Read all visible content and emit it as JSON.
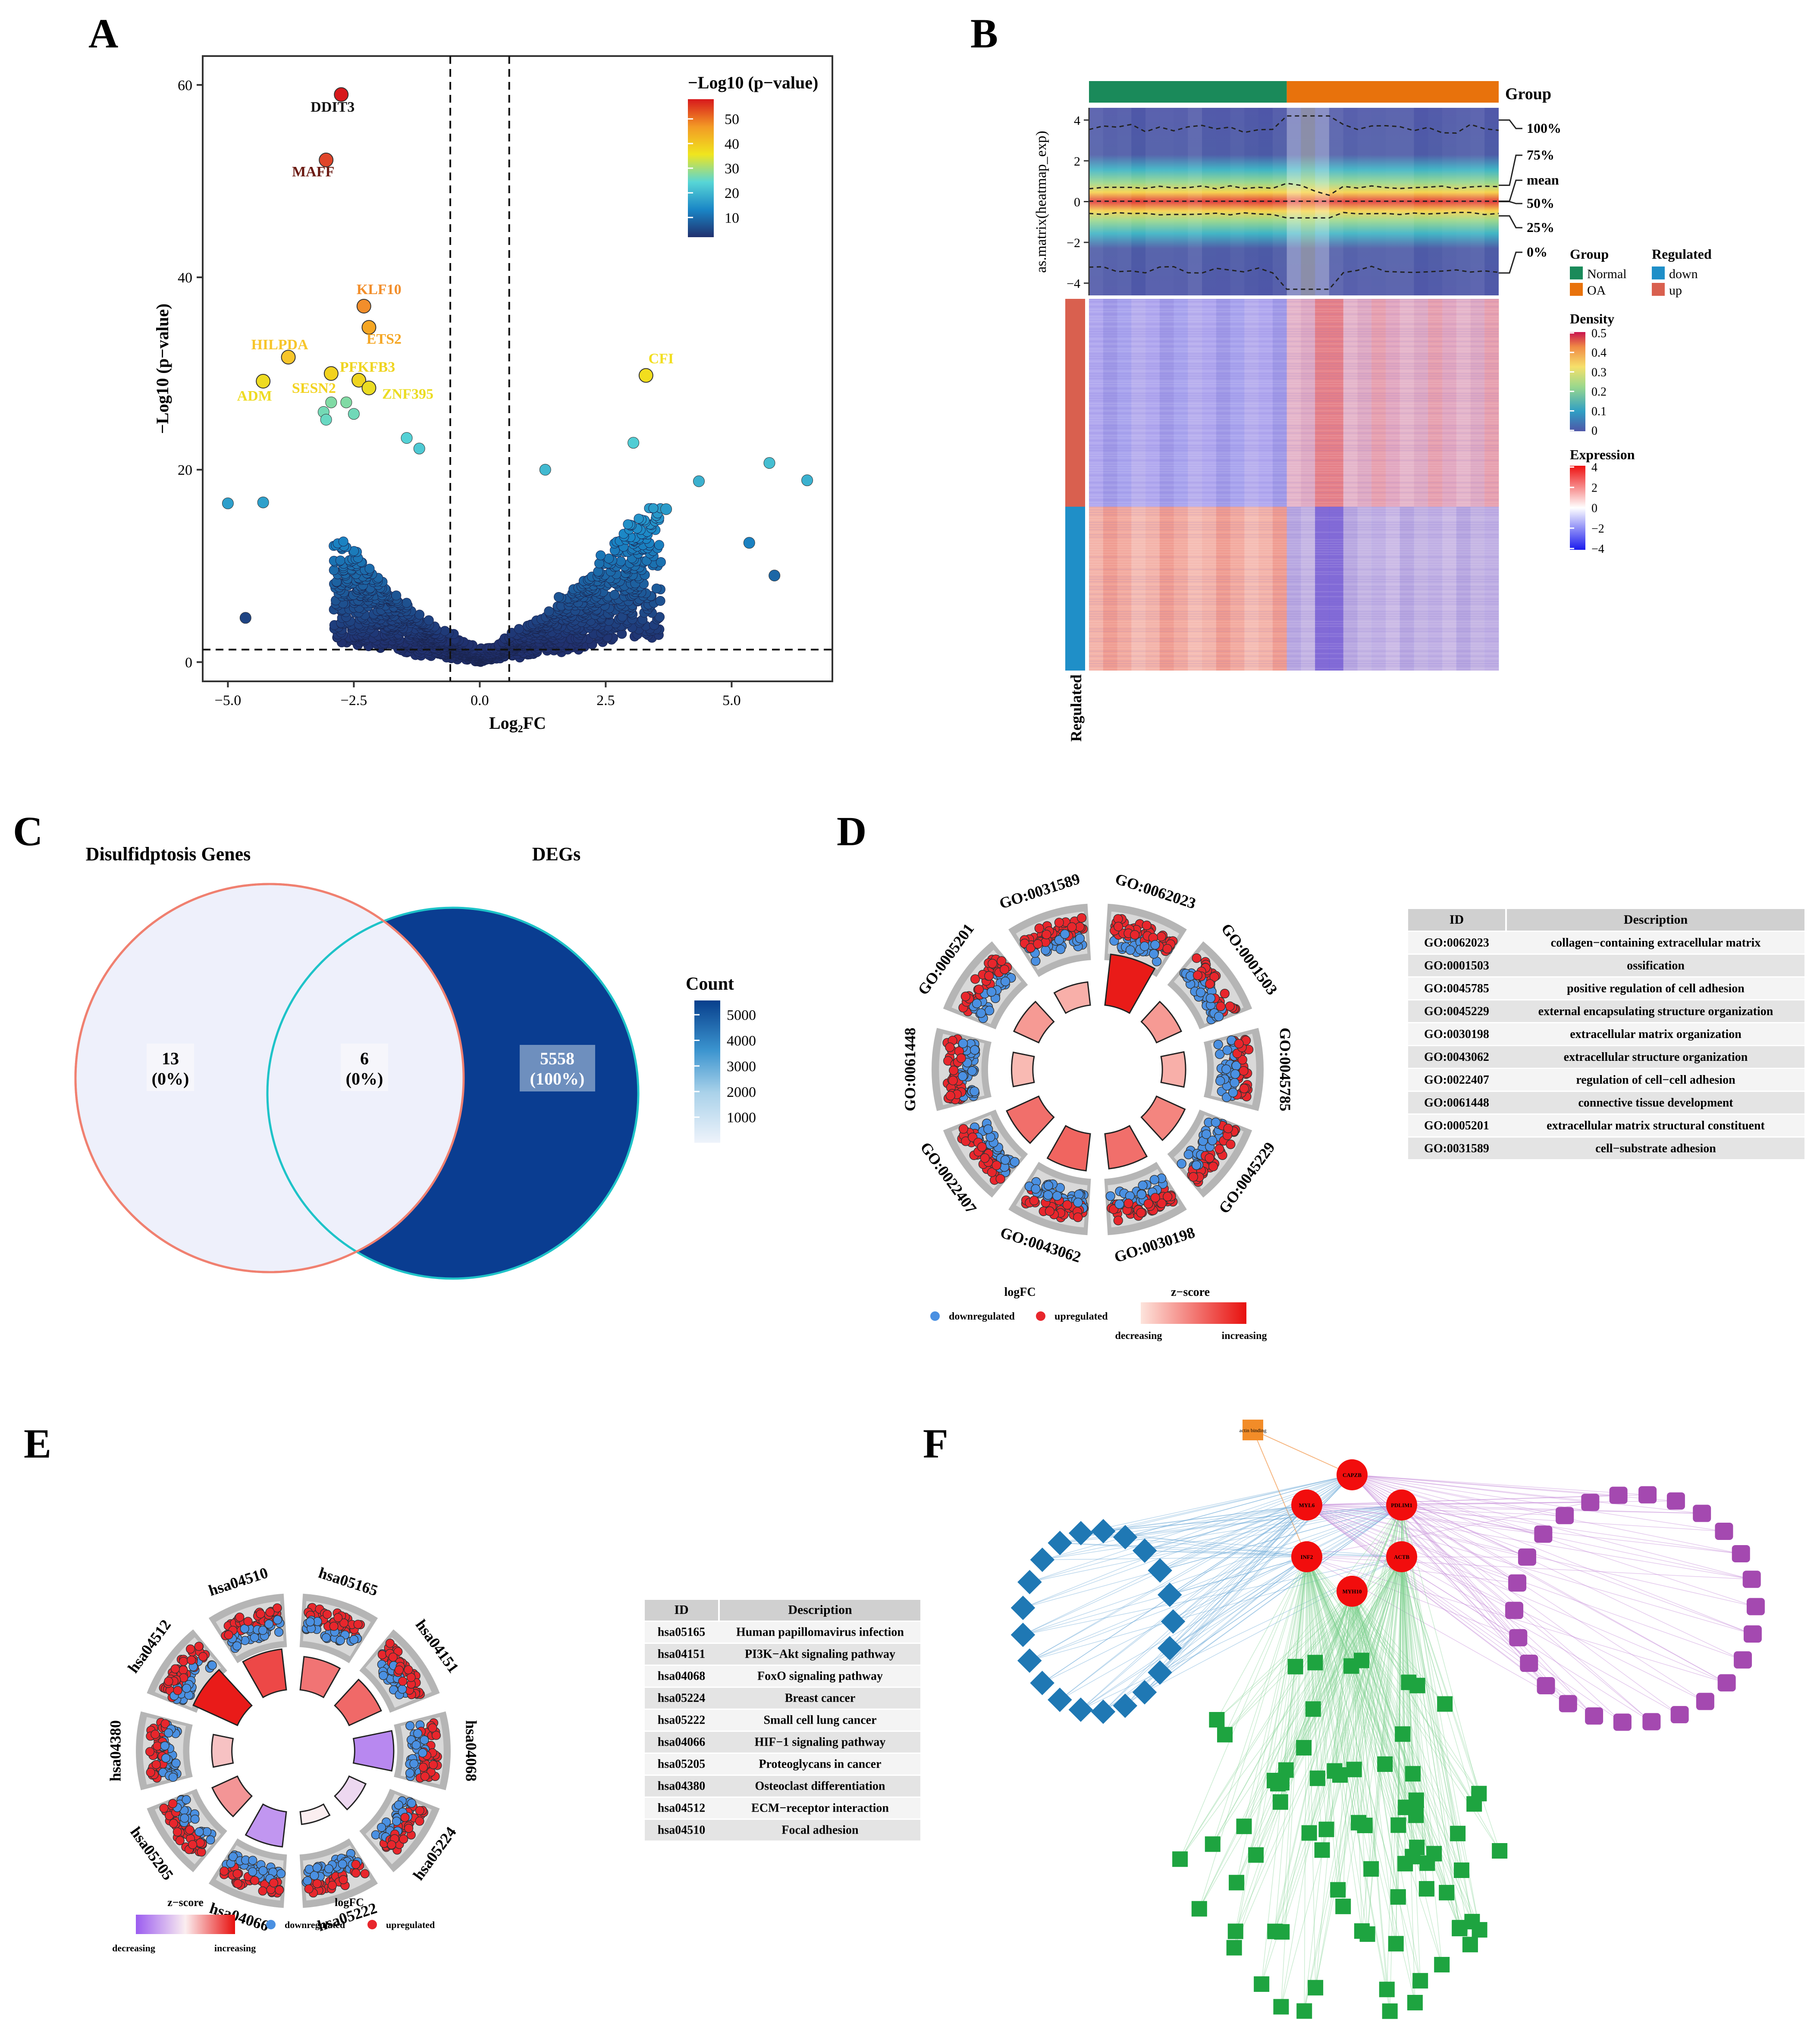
{
  "panels": {
    "A": "A",
    "B": "B",
    "C": "C",
    "D": "D",
    "E": "E",
    "F": "F"
  },
  "chart_data": [
    {
      "panel": "A",
      "type": "scatter",
      "title": "",
      "xlabel": "Log₂FC",
      "ylabel": "−Log10 (p−value)",
      "xlim": [
        -5.5,
        7
      ],
      "ylim": [
        -2,
        63
      ],
      "xticks": [
        "−5.0",
        "−2.5",
        "0.0",
        "2.5",
        "5.0"
      ],
      "xtick_values": [
        -5,
        -2.5,
        0,
        2.5,
        5
      ],
      "yticks": [
        "0",
        "20",
        "40",
        "60"
      ],
      "ytick_values": [
        0,
        20,
        40,
        60
      ],
      "thresholds": {
        "x": [
          -0.585,
          0.585
        ],
        "y": 1.3
      },
      "legend_title": "−Log10 (p−value)",
      "legend_ticks": [
        "50",
        "40",
        "30",
        "20",
        "10"
      ],
      "legend_tick_values": [
        50,
        40,
        30,
        20,
        10
      ],
      "labeled_points": [
        {
          "label": "DDIT3",
          "x": -2.75,
          "y": 59.0,
          "color": "#d7191c"
        },
        {
          "label": "MAFF",
          "x": -3.05,
          "y": 52.2,
          "color": "#e0452a"
        },
        {
          "label": "KLF10",
          "x": -2.3,
          "y": 37.0,
          "color": "#f28e2b"
        },
        {
          "label": "ETS2",
          "x": -2.2,
          "y": 34.8,
          "color": "#f5a623"
        },
        {
          "label": "HILPDA",
          "x": -3.8,
          "y": 31.7,
          "color": "#f7c52a"
        },
        {
          "label": "CFI",
          "x": 3.3,
          "y": 29.8,
          "color": "#f2de1e"
        },
        {
          "label": "SESN2",
          "x": -2.95,
          "y": 30.0,
          "color": "#f2d21e"
        },
        {
          "label": "PFKFB3",
          "x": -2.4,
          "y": 29.3,
          "color": "#efd41f"
        },
        {
          "label": "ADM",
          "x": -4.3,
          "y": 29.2,
          "color": "#eedb22"
        },
        {
          "label": "ZNF395",
          "x": -2.2,
          "y": 28.5,
          "color": "#ebdc22"
        }
      ],
      "extra_points": [
        {
          "x": -2.95,
          "y": 27.0
        },
        {
          "x": -3.1,
          "y": 26.0
        },
        {
          "x": -3.05,
          "y": 25.2
        },
        {
          "x": -2.5,
          "y": 25.8
        },
        {
          "x": -2.65,
          "y": 27.0
        },
        {
          "x": 3.05,
          "y": 22.8
        },
        {
          "x": 5.75,
          "y": 20.7
        },
        {
          "x": 6.5,
          "y": 18.9
        },
        {
          "x": 4.35,
          "y": 18.8
        },
        {
          "x": -5.0,
          "y": 16.5
        },
        {
          "x": -4.3,
          "y": 16.6
        },
        {
          "x": -4.65,
          "y": 4.6
        },
        {
          "x": 1.3,
          "y": 20.0
        },
        {
          "x": -1.45,
          "y": 23.3
        },
        {
          "x": -1.2,
          "y": 22.2
        },
        {
          "x": 5.35,
          "y": 12.4
        },
        {
          "x": 5.85,
          "y": 9.0
        },
        {
          "x": 3.7,
          "y": 15.9
        }
      ]
    },
    {
      "panel": "B",
      "type": "heatmap",
      "density_ylabel": "as.matrix(heatmap_exp)",
      "density_yticks": [
        "4",
        "2",
        "0",
        "−2",
        "−4"
      ],
      "density_ytick_values": [
        4,
        2,
        0,
        -2,
        -4
      ],
      "quantile_labels": [
        "100%",
        "75%",
        "mean",
        "50%",
        "25%",
        "0%"
      ],
      "group_label": "Group",
      "groups": [
        {
          "name": "Normal",
          "color": "#1a8a5a",
          "n": 14
        },
        {
          "name": "OA",
          "color": "#e8720c",
          "n": 15
        }
      ],
      "regulated_label": "Regulated",
      "regulated": [
        {
          "name": "down",
          "color": "#1f8fc8"
        },
        {
          "name": "up",
          "color": "#d9604f"
        }
      ],
      "density_legend": {
        "title": "Density",
        "ticks": [
          "0.5",
          "0.4",
          "0.3",
          "0.2",
          "0.1",
          "0"
        ]
      },
      "expression_legend": {
        "title": "Expression",
        "ticks": [
          "4",
          "2",
          "0",
          "−2",
          "−4"
        ]
      },
      "row_annotation_label": "Regulated"
    },
    {
      "panel": "C",
      "type": "venn",
      "sets": [
        "Disulfidptosis Genes",
        "DEGs"
      ],
      "regions": [
        {
          "name": "Disulfidptosis only",
          "count": "13",
          "pct": "(0%)"
        },
        {
          "name": "Intersection",
          "count": "6",
          "pct": "(0%)"
        },
        {
          "name": "DEGs only",
          "count": "5558",
          "pct": "(100%)"
        }
      ],
      "legend_title": "Count",
      "legend_ticks": [
        "5000",
        "4000",
        "3000",
        "2000",
        "1000"
      ],
      "legend_tick_values": [
        5000,
        4000,
        3000,
        2000,
        1000
      ],
      "legend_max": 5558
    },
    {
      "panel": "D",
      "type": "circular",
      "terms": [
        "GO:0062023",
        "GO:0001503",
        "GO:0045785",
        "GO:0045229",
        "GO:0030198",
        "GO:0043062",
        "GO:0022407",
        "GO:0061448",
        "GO:0005201",
        "GO:0031589"
      ],
      "zscores": [
        0.95,
        0.35,
        0.25,
        0.45,
        0.55,
        0.6,
        0.55,
        0.2,
        0.35,
        0.25
      ],
      "table_header": [
        "ID",
        "Description"
      ],
      "table": [
        [
          "GO:0062023",
          "collagen−containing extracellular matrix"
        ],
        [
          "GO:0001503",
          "ossification"
        ],
        [
          "GO:0045785",
          "positive regulation of cell adhesion"
        ],
        [
          "GO:0045229",
          "external encapsulating structure organization"
        ],
        [
          "GO:0030198",
          "extracellular matrix organization"
        ],
        [
          "GO:0043062",
          "extracellular structure organization"
        ],
        [
          "GO:0022407",
          "regulation of cell−cell adhesion"
        ],
        [
          "GO:0061448",
          "connective tissue development"
        ],
        [
          "GO:0005201",
          "extracellular matrix structural constituent"
        ],
        [
          "GO:0031589",
          "cell−substrate adhesion"
        ]
      ],
      "legend": {
        "logfc_title": "logFC",
        "down": "downregulated",
        "up": "upregulated",
        "z_title": "z−score",
        "z_low": "decreasing",
        "z_high": "increasing"
      }
    },
    {
      "panel": "E",
      "type": "circular",
      "terms": [
        "hsa05165",
        "hsa04151",
        "hsa04068",
        "hsa05224",
        "hsa05222",
        "hsa04066",
        "hsa05205",
        "hsa04380",
        "hsa04512",
        "hsa04510"
      ],
      "zscores": [
        0.55,
        0.6,
        -0.7,
        -0.15,
        0.0,
        -0.6,
        0.4,
        0.2,
        0.95,
        0.75
      ],
      "table_header": [
        "ID",
        "Description"
      ],
      "table": [
        [
          "hsa05165",
          "Human papillomavirus infection"
        ],
        [
          "hsa04151",
          "PI3K−Akt signaling pathway"
        ],
        [
          "hsa04068",
          "FoxO signaling pathway"
        ],
        [
          "hsa05224",
          "Breast cancer"
        ],
        [
          "hsa05222",
          "Small cell lung cancer"
        ],
        [
          "hsa04066",
          "HIF−1 signaling pathway"
        ],
        [
          "hsa05205",
          "Proteoglycans in cancer"
        ],
        [
          "hsa04380",
          "Osteoclast differentiation"
        ],
        [
          "hsa04512",
          "ECM−receptor interaction"
        ],
        [
          "hsa04510",
          "Focal adhesion"
        ]
      ],
      "legend": {
        "z_title": "z−score",
        "z_low": "decreasing",
        "z_high": "increasing",
        "logfc_title": "logFC",
        "down": "downregulated",
        "up": "upregulated"
      }
    },
    {
      "panel": "F",
      "type": "network",
      "hub_genes": [
        "CAPZB",
        "MYL6",
        "PDLIM1",
        "INF2",
        "ACTB",
        "MYH10"
      ],
      "mf_node": "actin binding",
      "bp_count": 75,
      "cc_count": 26,
      "mf_blue_count": 21
    }
  ]
}
